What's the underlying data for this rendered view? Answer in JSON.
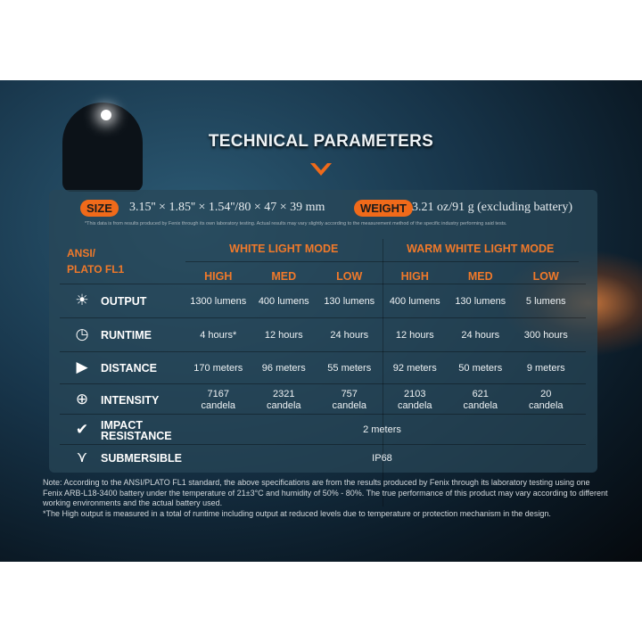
{
  "title": "TECHNICAL PARAMETERS",
  "size": {
    "label": "SIZE",
    "value": "3.15'' × 1.85'' × 1.54''/80 × 47 × 39 mm"
  },
  "weight": {
    "label": "WEIGHT",
    "value": "3.21 oz/91 g (excluding battery)"
  },
  "disclaimer": "*This data is from results produced by Fenix through its own laboratory testing. Actual results may vary slightly according to the measurement method of the specific industry performing said tests.",
  "table": {
    "standard": [
      "ANSI/",
      "PLATO FL1"
    ],
    "modes": [
      "WHITE LIGHT MODE",
      "WARM WHITE LIGHT MODE"
    ],
    "levels": [
      "HIGH",
      "MED",
      "LOW",
      "HIGH",
      "MED",
      "LOW"
    ],
    "rows": [
      {
        "icon": "output-icon",
        "label": "OUTPUT",
        "values": [
          "1300 lumens",
          "400 lumens",
          "130 lumens",
          "400 lumens",
          "130 lumens",
          "5 lumens"
        ]
      },
      {
        "icon": "clock-icon",
        "label": "RUNTIME",
        "values": [
          "4 hours*",
          "12 hours",
          "24 hours",
          "12 hours",
          "24 hours",
          "300 hours"
        ]
      },
      {
        "icon": "distance-icon",
        "label": "DISTANCE",
        "values": [
          "170 meters",
          "96 meters",
          "55 meters",
          "92 meters",
          "50 meters",
          "9 meters"
        ]
      },
      {
        "icon": "target-icon",
        "label": "INTENSITY",
        "values": [
          "7167\ncandela",
          "2321\ncandela",
          "757\ncandela",
          "2103\ncandela",
          "621\ncandela",
          "20\ncandela"
        ]
      },
      {
        "icon": "impact-icon",
        "label": "IMPACT\nRESISTANCE",
        "span": "2 meters"
      },
      {
        "icon": "water-icon",
        "label": "SUBMERSIBLE",
        "span": "IP68"
      }
    ]
  },
  "notes": [
    "Note: According to the ANSI/PLATO FL1 standard, the above specifications are from the results produced by Fenix through its laboratory testing using one Fenix ARB-L18-3400 battery under the temperature of 21±3°C and humidity of 50% - 80%. The true performance of this product may vary according to different working environments and the actual battery used.",
    "*The High output is measured in a total of runtime including output at reduced levels due to temperature or protection mechanism in the design."
  ],
  "colors": {
    "accent": "#f06a1a"
  }
}
